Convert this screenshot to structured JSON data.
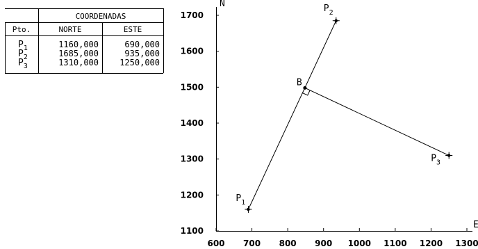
{
  "table": {
    "group_header": "COORDENADAS",
    "col_pto": "Pto.",
    "col_norte": "NORTE",
    "col_este": "ESTE",
    "rows": [
      {
        "pt": "P",
        "sub": "1",
        "norte": "1160,000",
        "este": "690,000"
      },
      {
        "pt": "P",
        "sub": "2",
        "norte": "1685,000",
        "este": "935,000"
      },
      {
        "pt": "P",
        "sub": "3",
        "norte": "1310,000",
        "este": "1250,000"
      }
    ]
  },
  "chart_data": {
    "type": "scatter",
    "xlabel": "E",
    "ylabel": "N",
    "xlim": [
      600,
      1300
    ],
    "ylim": [
      1100,
      1700
    ],
    "x_ticks": [
      600,
      700,
      800,
      900,
      1000,
      1100,
      1200,
      1300
    ],
    "y_ticks": [
      1100,
      1200,
      1300,
      1400,
      1500,
      1600,
      1700
    ],
    "points": [
      {
        "name": "P",
        "sub": "1",
        "x": 690,
        "y": 1160
      },
      {
        "name": "P",
        "sub": "2",
        "x": 935,
        "y": 1685
      },
      {
        "name": "P",
        "sub": "3",
        "x": 1250,
        "y": 1310
      },
      {
        "name": "B",
        "sub": "",
        "x": 848,
        "y": 1498
      }
    ],
    "segments": [
      [
        "P1",
        "P2"
      ],
      [
        "B",
        "P3"
      ]
    ],
    "right_angle_at": "B"
  }
}
